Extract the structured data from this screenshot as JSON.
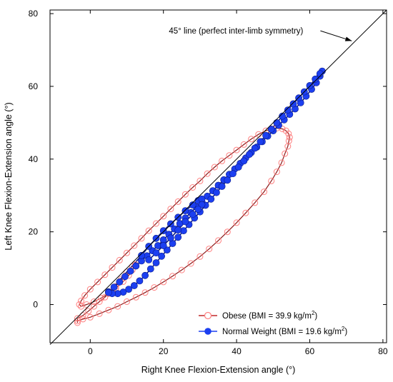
{
  "chart_data": {
    "type": "scatter",
    "title": "",
    "xlabel": "Right Knee Flexion-Extension angle (°)",
    "ylabel": "Left Knee Flexion-Extension angle (°)",
    "xlim": [
      -11,
      81
    ],
    "ylim": [
      -10.5,
      81
    ],
    "xticks": [
      0,
      20,
      40,
      60,
      80
    ],
    "yticks": [
      0,
      20,
      40,
      60,
      80
    ],
    "grid": false,
    "legend_position": "bottom-right",
    "reference_line": {
      "label": "45° line (perfect inter-limb symmetry)",
      "from": [
        -11,
        -11
      ],
      "to": [
        81,
        81
      ],
      "arrow_tip": [
        71.5,
        72.5
      ],
      "label_anchor": [
        21.5,
        74.5
      ]
    },
    "series": [
      {
        "name": "Obese (BMI = 39.9 kg/m",
        "name_sup": "2",
        "name_suffix": ")",
        "marker": "open-circle",
        "color": "#ff8080",
        "line_color": "#8b1a1a",
        "points": [
          [
            -3.5,
            -4.5
          ],
          [
            -2,
            -4
          ],
          [
            0,
            -3.5
          ],
          [
            2.5,
            -2.5
          ],
          [
            5,
            -1.5
          ],
          [
            7.5,
            -0.5
          ],
          [
            10,
            0.8
          ],
          [
            12.5,
            2
          ],
          [
            15,
            3.3
          ],
          [
            17.5,
            4.7
          ],
          [
            20,
            6.2
          ],
          [
            22.5,
            7.8
          ],
          [
            25,
            9.5
          ],
          [
            27.5,
            11.3
          ],
          [
            30,
            13.2
          ],
          [
            32.5,
            15.3
          ],
          [
            35,
            17.6
          ],
          [
            37.5,
            20
          ],
          [
            40,
            22.5
          ],
          [
            42.5,
            25.2
          ],
          [
            45,
            28
          ],
          [
            47.5,
            31
          ],
          [
            49.5,
            34
          ],
          [
            51,
            36.5
          ],
          [
            52.3,
            39
          ],
          [
            53.2,
            41.5
          ],
          [
            54,
            43.5
          ],
          [
            54.3,
            45
          ],
          [
            54.5,
            46
          ],
          [
            54.2,
            47
          ],
          [
            53.5,
            47.8
          ],
          [
            52.5,
            48.3
          ],
          [
            51,
            48.5
          ],
          [
            49.5,
            48.3
          ],
          [
            48,
            47.8
          ],
          [
            46,
            46.8
          ],
          [
            44,
            45.5
          ],
          [
            42,
            44
          ],
          [
            40,
            42.5
          ],
          [
            38,
            41
          ],
          [
            36,
            39.5
          ],
          [
            34,
            37.8
          ],
          [
            32,
            36
          ],
          [
            30,
            34
          ],
          [
            28,
            32.2
          ],
          [
            26,
            30.3
          ],
          [
            24,
            28.3
          ],
          [
            22,
            26.3
          ],
          [
            20,
            24.3
          ],
          [
            18,
            22.3
          ],
          [
            16,
            20.3
          ],
          [
            14,
            18.2
          ],
          [
            12,
            16.2
          ],
          [
            10,
            14.2
          ],
          [
            8,
            12.2
          ],
          [
            6,
            10.2
          ],
          [
            4,
            8.2
          ],
          [
            2,
            6.2
          ],
          [
            0,
            4.2
          ],
          [
            -1.5,
            2.5
          ],
          [
            -2.5,
            1
          ],
          [
            -3,
            0
          ],
          [
            -2.5,
            -0.5
          ],
          [
            -1,
            0
          ],
          [
            1,
            0.8
          ],
          [
            3,
            1.8
          ],
          [
            5,
            3
          ],
          [
            7,
            4.5
          ],
          [
            9,
            6.3
          ],
          [
            10.5,
            8
          ],
          [
            11.5,
            9.5
          ],
          [
            12.3,
            11
          ],
          [
            11.5,
            10.5
          ],
          [
            10,
            9
          ],
          [
            8.5,
            7
          ],
          [
            7,
            5
          ],
          [
            5.5,
            3.5
          ],
          [
            4,
            2
          ],
          [
            2.5,
            0.8
          ],
          [
            1,
            -0.5
          ],
          [
            -0.5,
            -1.8
          ],
          [
            -2,
            -3
          ],
          [
            -3.5,
            -3.8
          ],
          [
            -3.5,
            -5
          ]
        ]
      },
      {
        "name": "Normal Weight (BMI = 19.6 kg/m",
        "name_sup": "2",
        "name_suffix": ")",
        "marker": "filled-circle",
        "color": "#1c3ff0",
        "line_color": "#0a1a8a",
        "points": [
          [
            5,
            3.5
          ],
          [
            6.5,
            4.8
          ],
          [
            8,
            6.2
          ],
          [
            9.5,
            7.7
          ],
          [
            11,
            9.2
          ],
          [
            12.5,
            10.6
          ],
          [
            14,
            12
          ],
          [
            15.5,
            13.4
          ],
          [
            17,
            14.8
          ],
          [
            18.5,
            16.2
          ],
          [
            20,
            17.8
          ],
          [
            21.5,
            19.3
          ],
          [
            23,
            20.8
          ],
          [
            24.5,
            22.3
          ],
          [
            26,
            23.8
          ],
          [
            27.5,
            25.3
          ],
          [
            29,
            26.8
          ],
          [
            30.5,
            28.3
          ],
          [
            32,
            29.8
          ],
          [
            33.5,
            31.3
          ],
          [
            35,
            32.8
          ],
          [
            36.5,
            34.3
          ],
          [
            38,
            35.8
          ],
          [
            39.5,
            37.3
          ],
          [
            41,
            38.8
          ],
          [
            42.5,
            40.3
          ],
          [
            44,
            41.8
          ],
          [
            45.5,
            43.3
          ],
          [
            47,
            44.8
          ],
          [
            48.5,
            46.3
          ],
          [
            50,
            47.8
          ],
          [
            51.5,
            49.3
          ],
          [
            53,
            50.8
          ],
          [
            54.5,
            52.3
          ],
          [
            56,
            53.8
          ],
          [
            57.5,
            55.5
          ],
          [
            59,
            57.3
          ],
          [
            60.5,
            59.2
          ],
          [
            61.8,
            61
          ],
          [
            62.8,
            62.8
          ],
          [
            63.4,
            64.2
          ],
          [
            62.8,
            63.5
          ],
          [
            61.5,
            62
          ],
          [
            60,
            60.2
          ],
          [
            58.5,
            58.5
          ],
          [
            57,
            56.8
          ],
          [
            55.5,
            55.2
          ],
          [
            54,
            53.5
          ],
          [
            52.5,
            51.8
          ],
          [
            51,
            50
          ],
          [
            49.5,
            48.2
          ],
          [
            48,
            46.5
          ],
          [
            46.5,
            44.8
          ],
          [
            45,
            43
          ],
          [
            43.5,
            41.3
          ],
          [
            42,
            39.5
          ],
          [
            40.5,
            37.8
          ],
          [
            39,
            36
          ],
          [
            37.5,
            34.2
          ],
          [
            36,
            32.5
          ],
          [
            34.5,
            30.8
          ],
          [
            33,
            29
          ],
          [
            31.5,
            27.3
          ],
          [
            30,
            25.5
          ],
          [
            28.5,
            23.8
          ],
          [
            27,
            22
          ],
          [
            25.5,
            20.3
          ],
          [
            24,
            18.5
          ],
          [
            22.5,
            16.8
          ],
          [
            21,
            15
          ],
          [
            19.5,
            13.3
          ],
          [
            18,
            11.5
          ],
          [
            16.5,
            9.8
          ],
          [
            15,
            8
          ],
          [
            13.5,
            6.5
          ],
          [
            12,
            5.2
          ],
          [
            10.5,
            4.2
          ],
          [
            9,
            3.4
          ],
          [
            7.5,
            3
          ],
          [
            6,
            3
          ],
          [
            5,
            3.3
          ],
          [
            14,
            13.5
          ],
          [
            16,
            16
          ],
          [
            18,
            18.2
          ],
          [
            20,
            20.3
          ],
          [
            22,
            22.2
          ],
          [
            24,
            24
          ],
          [
            26,
            25.8
          ],
          [
            28,
            27.4
          ],
          [
            29.5,
            28.6
          ],
          [
            30.5,
            29
          ],
          [
            30.5,
            27.5
          ],
          [
            29.5,
            26.2
          ],
          [
            28,
            24.8
          ],
          [
            26,
            22.8
          ],
          [
            24,
            20.5
          ],
          [
            22,
            18.3
          ],
          [
            20,
            16.2
          ],
          [
            18,
            14.2
          ],
          [
            16,
            12.3
          ]
        ]
      }
    ]
  }
}
